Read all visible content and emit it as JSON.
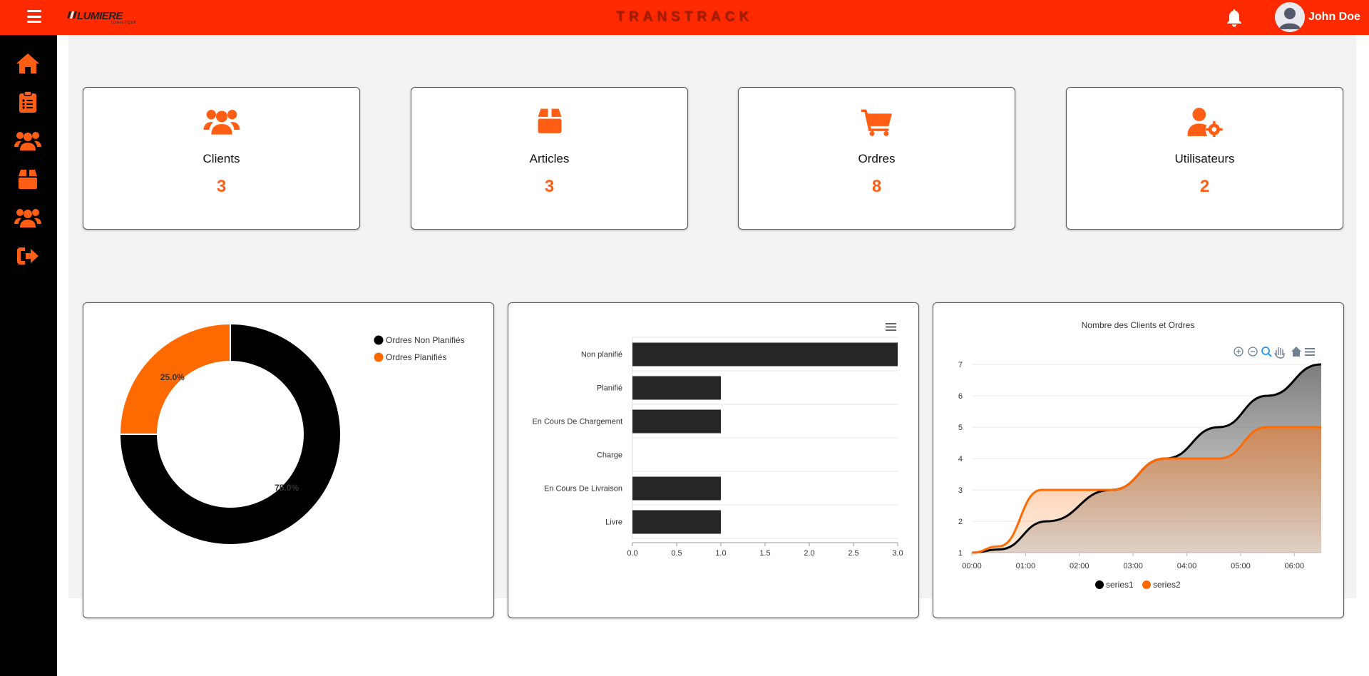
{
  "header": {
    "logo_text": "LUMIERE",
    "logo_sub": "LOGISTIQUE",
    "app_title": "TRANSTRACK",
    "user_name": "John Doe"
  },
  "colors": {
    "accent": "#ff5e14",
    "topbar": "#ff2a00",
    "sidebar": "#000000",
    "dark_series": "#000000"
  },
  "sidebar": {
    "items": [
      {
        "icon": "home-icon"
      },
      {
        "icon": "clipboard-icon"
      },
      {
        "icon": "users-icon"
      },
      {
        "icon": "box-icon"
      },
      {
        "icon": "users-group-icon"
      },
      {
        "icon": "logout-icon"
      }
    ]
  },
  "stats": [
    {
      "icon": "users-icon",
      "label": "Clients",
      "value": "3"
    },
    {
      "icon": "box-icon",
      "label": "Articles",
      "value": "3"
    },
    {
      "icon": "cart-icon",
      "label": "Ordres",
      "value": "8"
    },
    {
      "icon": "user-gear-icon",
      "label": "Utilisateurs",
      "value": "2"
    }
  ],
  "chart_data": [
    {
      "type": "pie",
      "labels": [
        "Ordres Non Planifiés",
        "Ordres Planifiés"
      ],
      "values": [
        75.0,
        25.0
      ],
      "value_labels": [
        "75.0%",
        "25.0%"
      ],
      "colors": [
        "#000000",
        "#ff6a00"
      ],
      "legend": "top-right",
      "donut": true
    },
    {
      "type": "bar",
      "orientation": "horizontal",
      "categories": [
        "Non planifié",
        "Planifié",
        "En Cours De Chargement",
        "Charge",
        "En Cours De Livraison",
        "Livre"
      ],
      "values": [
        3,
        1,
        1,
        0,
        1,
        1
      ],
      "xlim": [
        0,
        3
      ],
      "xticks": [
        "0.0",
        "0.5",
        "1.0",
        "1.5",
        "2.0",
        "2.5",
        "3.0"
      ],
      "color": "#262626",
      "grid": true
    },
    {
      "type": "area",
      "title": "Nombre des Clients et Ordres",
      "x": [
        "00:00",
        "01:00",
        "02:00",
        "03:00",
        "04:00",
        "05:00",
        "06:00"
      ],
      "series": [
        {
          "name": "series1",
          "x": [
            0,
            0.5,
            1.4,
            2.6,
            3.6,
            4.6,
            5.5,
            6.5
          ],
          "values": [
            1,
            1.1,
            2,
            3,
            4,
            5,
            6,
            7
          ],
          "color": "#000000"
        },
        {
          "name": "series2",
          "x": [
            0,
            0.5,
            1.3,
            2.6,
            3.6,
            4.6,
            5.5,
            6.5
          ],
          "values": [
            1,
            1.2,
            3,
            3,
            4,
            4,
            5,
            5
          ],
          "color": "#ff6a00"
        }
      ],
      "ylim": [
        1,
        7
      ],
      "yticks": [
        "1",
        "2",
        "3",
        "4",
        "5",
        "6",
        "7"
      ],
      "legend": "bottom",
      "grid": true
    }
  ]
}
